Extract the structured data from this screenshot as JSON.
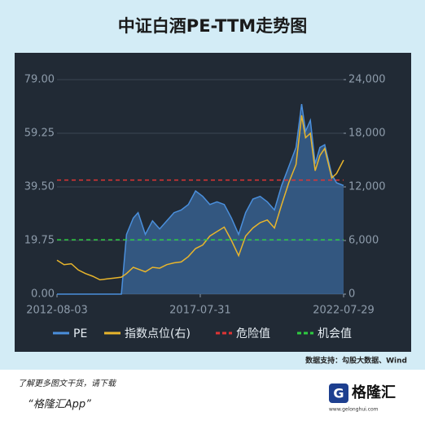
{
  "chart_data": {
    "type": "line",
    "title": "中证白酒PE-TTM走势图",
    "x": [
      "2012-08-03",
      "2012-11-01",
      "2013-02-01",
      "2013-05-01",
      "2013-08-01",
      "2013-11-01",
      "2014-02-01",
      "2014-05-01",
      "2014-08-01",
      "2014-11-01",
      "2015-01-05",
      "2015-04-01",
      "2015-06-01",
      "2015-09-01",
      "2015-12-01",
      "2016-03-01",
      "2016-06-01",
      "2016-09-01",
      "2016-12-01",
      "2017-03-01",
      "2017-06-01",
      "2017-09-01",
      "2017-12-01",
      "2018-03-01",
      "2018-06-01",
      "2018-09-01",
      "2018-12-01",
      "2019-03-01",
      "2019-06-01",
      "2019-09-01",
      "2019-12-01",
      "2020-03-01",
      "2020-06-01",
      "2020-09-01",
      "2020-12-01",
      "2021-02-10",
      "2021-04-01",
      "2021-06-01",
      "2021-08-01",
      "2021-10-01",
      "2021-12-01",
      "2022-03-01",
      "2022-05-01",
      "2022-07-29"
    ],
    "series": [
      {
        "name": "PE",
        "color": "#4a8fdc",
        "area": true,
        "values": [
          0,
          0,
          0,
          0,
          0,
          0,
          0,
          0,
          0,
          0,
          22,
          28,
          30,
          22,
          27,
          24,
          27,
          30,
          31,
          33,
          38,
          36,
          33,
          34,
          33,
          28,
          22,
          30,
          35,
          36,
          34,
          31,
          40,
          47,
          54,
          70,
          60,
          64,
          48,
          54,
          55,
          44,
          41,
          40
        ]
      },
      {
        "name": "指数点位(右)",
        "color": "#e8b52c",
        "axis": "y2",
        "values": [
          3800,
          3300,
          3400,
          2700,
          2300,
          2000,
          1600,
          1700,
          1800,
          1900,
          2300,
          3000,
          2800,
          2500,
          3000,
          2900,
          3300,
          3500,
          3600,
          4200,
          5100,
          5500,
          6500,
          7000,
          7500,
          6000,
          4300,
          6500,
          7400,
          8000,
          8300,
          7400,
          10000,
          12500,
          14500,
          20000,
          17500,
          18000,
          13800,
          15500,
          16300,
          13000,
          13500,
          15000
        ]
      }
    ],
    "reference_lines": [
      {
        "name": "危险值",
        "value": 42,
        "color": "#e03434"
      },
      {
        "name": "机会值",
        "value": 20,
        "color": "#2ecc40"
      }
    ],
    "xlim": [
      "2012-08-03",
      "2022-07-29"
    ],
    "xticks": [
      "2012-08-03",
      "2017-07-31",
      "2022-07-29"
    ],
    "ylim": [
      0,
      79
    ],
    "yticks": [
      {
        "value": 0,
        "label": "0.00"
      },
      {
        "value": 19.75,
        "label": "19.75"
      },
      {
        "value": 39.5,
        "label": "39.50"
      },
      {
        "value": 59.25,
        "label": "59.25"
      },
      {
        "value": 79,
        "label": "79.00"
      }
    ],
    "y2lim": [
      0,
      24000
    ],
    "y2ticks": [
      0,
      {
        "value": 6000,
        "label": "6,000"
      },
      {
        "value": 12000,
        "label": "12,000"
      },
      {
        "value": 18000,
        "label": "18,000"
      },
      {
        "value": 24000,
        "label": "24,000"
      }
    ],
    "grid": true,
    "source": "数据支持：勾股大数据、Wind"
  },
  "footer": {
    "prompt": "了解更多图文干货，请下载",
    "app": "“格隆汇App”",
    "brand": "格隆汇",
    "url": "www.gelonghui.com"
  }
}
